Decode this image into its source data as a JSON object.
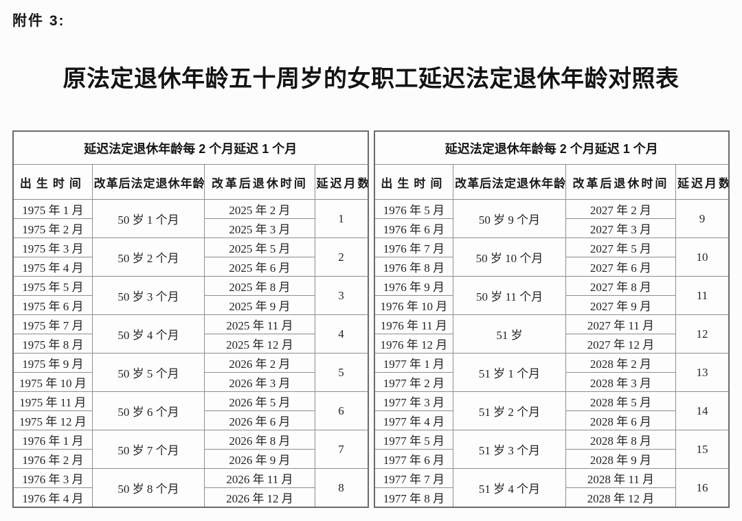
{
  "page": {
    "attachment_label": "附件 3:",
    "title": "原法定退休年龄五十周岁的女职工延迟法定退休年龄对照表"
  },
  "table": {
    "group_header": "延迟法定退休年龄每 2 个月延迟 1 个月",
    "columns": [
      "出生时间",
      "改革后法定退休年龄",
      "改革后退休时间",
      "延迟月数"
    ],
    "left_groups": [
      {
        "births": [
          "1975 年 1 月",
          "1975 年 2 月"
        ],
        "age": "50 岁 1 个月",
        "retirements": [
          "2025 年 2 月",
          "2025 年 3 月"
        ],
        "delay_months": "1"
      },
      {
        "births": [
          "1975 年 3 月",
          "1975 年 4 月"
        ],
        "age": "50 岁 2 个月",
        "retirements": [
          "2025 年 5 月",
          "2025 年 6 月"
        ],
        "delay_months": "2"
      },
      {
        "births": [
          "1975 年 5 月",
          "1975 年 6 月"
        ],
        "age": "50 岁 3 个月",
        "retirements": [
          "2025 年 8 月",
          "2025 年 9 月"
        ],
        "delay_months": "3"
      },
      {
        "births": [
          "1975 年 7 月",
          "1975 年 8 月"
        ],
        "age": "50 岁 4 个月",
        "retirements": [
          "2025 年 11 月",
          "2025 年 12 月"
        ],
        "delay_months": "4"
      },
      {
        "births": [
          "1975 年 9 月",
          "1975 年 10 月"
        ],
        "age": "50 岁 5 个月",
        "retirements": [
          "2026 年 2 月",
          "2026 年 3 月"
        ],
        "delay_months": "5"
      },
      {
        "births": [
          "1975 年 11 月",
          "1975 年 12 月"
        ],
        "age": "50 岁 6 个月",
        "retirements": [
          "2026 年 5 月",
          "2026 年 6 月"
        ],
        "delay_months": "6"
      },
      {
        "births": [
          "1976 年 1 月",
          "1976 年 2 月"
        ],
        "age": "50 岁 7 个月",
        "retirements": [
          "2026 年 8 月",
          "2026 年 9 月"
        ],
        "delay_months": "7"
      },
      {
        "births": [
          "1976 年 3 月",
          "1976 年 4 月"
        ],
        "age": "50 岁 8 个月",
        "retirements": [
          "2026 年 11 月",
          "2026 年 12 月"
        ],
        "delay_months": "8"
      }
    ],
    "right_groups": [
      {
        "births": [
          "1976 年 5 月",
          "1976 年 6 月"
        ],
        "age": "50 岁 9 个月",
        "retirements": [
          "2027 年 2 月",
          "2027 年 3 月"
        ],
        "delay_months": "9"
      },
      {
        "births": [
          "1976 年 7 月",
          "1976 年 8 月"
        ],
        "age": "50 岁 10 个月",
        "retirements": [
          "2027 年 5 月",
          "2027 年 6 月"
        ],
        "delay_months": "10"
      },
      {
        "births": [
          "1976 年 9 月",
          "1976 年 10 月"
        ],
        "age": "50 岁 11 个月",
        "retirements": [
          "2027 年 8 月",
          "2027 年 9 月"
        ],
        "delay_months": "11"
      },
      {
        "births": [
          "1976 年 11 月",
          "1976 年 12 月"
        ],
        "age": "51 岁",
        "retirements": [
          "2027 年 11 月",
          "2027 年 12 月"
        ],
        "delay_months": "12"
      },
      {
        "births": [
          "1977 年 1 月",
          "1977 年 2 月"
        ],
        "age": "51 岁 1 个月",
        "retirements": [
          "2028 年 2 月",
          "2028 年 3 月"
        ],
        "delay_months": "13"
      },
      {
        "births": [
          "1977 年 3 月",
          "1977 年 4 月"
        ],
        "age": "51 岁 2 个月",
        "retirements": [
          "2028 年 5 月",
          "2028 年 6 月"
        ],
        "delay_months": "14"
      },
      {
        "births": [
          "1977 年 5 月",
          "1977 年 6 月"
        ],
        "age": "51 岁 3 个月",
        "retirements": [
          "2028 年 8 月",
          "2028 年 9 月"
        ],
        "delay_months": "15"
      },
      {
        "births": [
          "1977 年 7 月",
          "1977 年 8 月"
        ],
        "age": "51 岁 4 个月",
        "retirements": [
          "2028 年 11 月",
          "2028 年 12 月"
        ],
        "delay_months": "16"
      }
    ]
  }
}
